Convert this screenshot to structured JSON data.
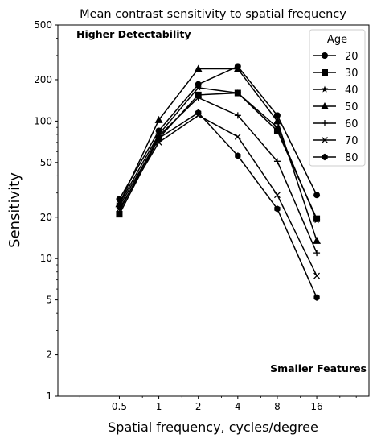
{
  "chart_data": {
    "type": "line",
    "title": "Mean contrast sensitivity to spatial frequency",
    "xlabel": "Spatial frequency, cycles/degree",
    "ylabel": "Sensitivity",
    "xscale": "log2",
    "yscale": "log",
    "xlim": [
      0.17,
      40
    ],
    "ylim": [
      1,
      500
    ],
    "xticks": [
      0.5,
      1,
      2,
      4,
      8,
      16
    ],
    "xtick_labels": [
      "0.5",
      "1",
      "2",
      "4",
      "8",
      "16"
    ],
    "yticks": [
      1,
      2,
      5,
      10,
      20,
      50,
      100,
      200,
      500
    ],
    "ytick_labels": [
      "1",
      "2",
      "5",
      "10",
      "20",
      "50",
      "100",
      "200",
      "500"
    ],
    "grid": false,
    "legend": {
      "title": "Age",
      "placement": "upper right"
    },
    "annotations": [
      "Higher Detectability",
      "Smaller Features"
    ],
    "x": [
      0.5,
      1,
      2,
      4,
      8,
      16
    ],
    "series": [
      {
        "name": "20",
        "marker": "circle",
        "values": [
          27,
          85,
          185,
          250,
          110,
          29
        ]
      },
      {
        "name": "30",
        "marker": "square",
        "values": [
          21,
          75,
          155,
          160,
          85,
          19.5
        ]
      },
      {
        "name": "40",
        "marker": "star",
        "values": [
          25,
          80,
          175,
          160,
          90,
          19
        ]
      },
      {
        "name": "50",
        "marker": "triangle",
        "values": [
          25,
          102,
          240,
          240,
          100,
          13.5
        ]
      },
      {
        "name": "60",
        "marker": "plus",
        "values": [
          22,
          78,
          148,
          110,
          51,
          11
        ]
      },
      {
        "name": "70",
        "marker": "x",
        "values": [
          23,
          70,
          110,
          77,
          29,
          7.5
        ]
      },
      {
        "name": "80",
        "marker": "hexagon",
        "values": [
          24,
          75,
          115,
          56,
          23,
          5.2
        ]
      }
    ]
  }
}
